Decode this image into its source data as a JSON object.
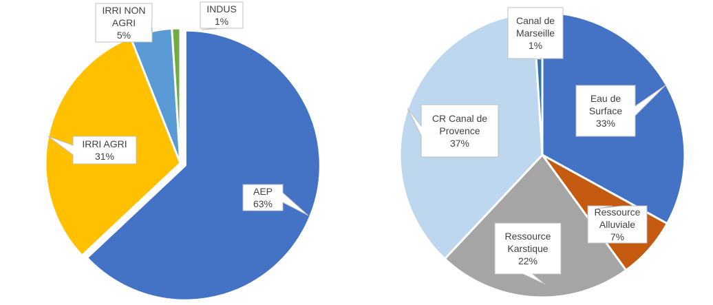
{
  "chart_data": [
    {
      "type": "pie",
      "slices": [
        {
          "label_lines": [
            "AEP"
          ],
          "value": 63,
          "value_label": "63%",
          "color": "#4472C4"
        },
        {
          "label_lines": [
            "IRRI AGRI"
          ],
          "value": 31,
          "value_label": "31%",
          "color": "#FFC000"
        },
        {
          "label_lines": [
            "IRRI NON",
            "AGRI"
          ],
          "value": 5,
          "value_label": "5%",
          "color": "#5B9BD5"
        },
        {
          "label_lines": [
            "INDUS"
          ],
          "value": 1,
          "value_label": "1%",
          "color": "#70AD47"
        }
      ],
      "exploded_slice": "AEP"
    },
    {
      "type": "pie",
      "slices": [
        {
          "label_lines": [
            "Eau de",
            "Surface"
          ],
          "value": 33,
          "value_label": "33%",
          "color": "#4472C4"
        },
        {
          "label_lines": [
            "Ressource",
            "Alluviale"
          ],
          "value": 7,
          "value_label": "7%",
          "color": "#C55A11"
        },
        {
          "label_lines": [
            "Ressource",
            "Karstique"
          ],
          "value": 22,
          "value_label": "22%",
          "color": "#A5A5A5"
        },
        {
          "label_lines": [
            "CR Canal de",
            "Provence"
          ],
          "value": 37,
          "value_label": "37%",
          "color": "#BDD7EE"
        },
        {
          "label_lines": [
            "Canal de",
            "Marseille"
          ],
          "value": 1,
          "value_label": "1%",
          "color": "#2E75B6"
        }
      ]
    }
  ]
}
